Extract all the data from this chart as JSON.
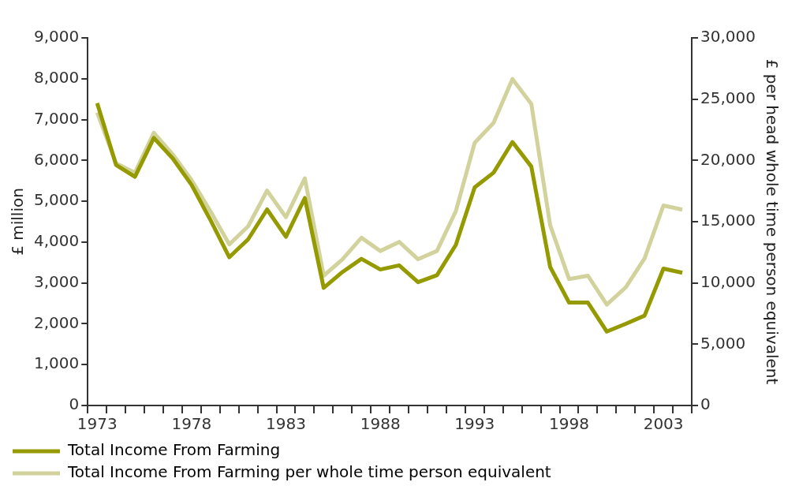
{
  "chart_data": {
    "type": "line",
    "categories": [
      "1973",
      null,
      null,
      null,
      null,
      "1978",
      null,
      null,
      null,
      null,
      "1983",
      null,
      null,
      null,
      null,
      "1988",
      null,
      null,
      null,
      null,
      "1993",
      null,
      null,
      null,
      null,
      "1998",
      null,
      null,
      null,
      null,
      "2003",
      null
    ],
    "ylabel": "£ million",
    "y2label": "£ per head whole time person equivalent",
    "ylim": [
      0,
      9000
    ],
    "yticks": [
      {
        "value": 0,
        "label": "0"
      },
      {
        "value": 1000,
        "label": "1,000"
      },
      {
        "value": 2000,
        "label": "2,000"
      },
      {
        "value": 3000,
        "label": "3,000"
      },
      {
        "value": 4000,
        "label": "4,000"
      },
      {
        "value": 5000,
        "label": "5,000"
      },
      {
        "value": 6000,
        "label": "6,000"
      },
      {
        "value": 7000,
        "label": "7,000"
      },
      {
        "value": 8000,
        "label": "8,000"
      },
      {
        "value": 9000,
        "label": "9,000"
      }
    ],
    "y2lim": [
      0,
      30000
    ],
    "y2ticks": [
      {
        "value": 0,
        "label": "0"
      },
      {
        "value": 5000,
        "label": "5,000"
      },
      {
        "value": 10000,
        "label": "10,000"
      },
      {
        "value": 15000,
        "label": "15,000"
      },
      {
        "value": 20000,
        "label": "20,000"
      },
      {
        "value": 25000,
        "label": "25,000"
      },
      {
        "value": 30000,
        "label": "30,000"
      }
    ],
    "legend": "bottom left",
    "marker": "none",
    "series": [
      {
        "name": "Total Income From Farming",
        "color": "#949a00",
        "values": [
          7400,
          5890,
          5600,
          6550,
          6050,
          5400,
          4540,
          3630,
          4070,
          4800,
          4130,
          5080,
          2880,
          3270,
          3590,
          3330,
          3430,
          3020,
          3190,
          3930,
          5340,
          5700,
          6450,
          5850,
          3390,
          2520,
          2520,
          1810,
          2000,
          2200,
          3350,
          3250
        ]
      },
      {
        "name": "Total Income From Farming per whole time person equivalent",
        "color": "#d2d39c",
        "axis": "y2",
        "values": [
          23900,
          19760,
          19000,
          22250,
          20500,
          18400,
          15850,
          13150,
          14630,
          17530,
          15370,
          18540,
          10590,
          11940,
          13690,
          12610,
          13350,
          11940,
          12610,
          15850,
          21440,
          23060,
          26640,
          24610,
          14700,
          10320,
          10590,
          8230,
          9640,
          12000,
          16320,
          15980
        ]
      }
    ]
  }
}
